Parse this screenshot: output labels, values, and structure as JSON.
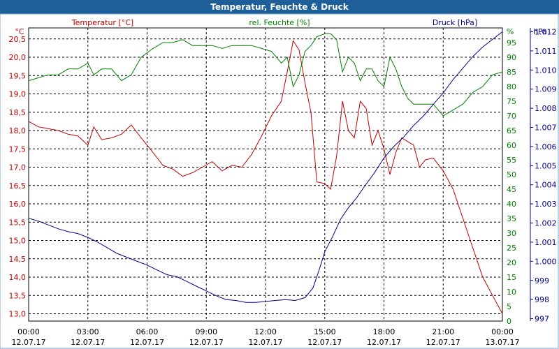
{
  "window": {
    "title": "Temperatur, Feuchte & Druck"
  },
  "colors": {
    "temperature": "#c00000",
    "humidity": "#008000",
    "pressure": "#00008b",
    "titlebar": "#1f5f99"
  },
  "chart_data": {
    "type": "line",
    "title": "Temperatur, Feuchte & Druck",
    "x_labels": [
      {
        "time": "00:00",
        "date": "12.07.17"
      },
      {
        "time": "03:00",
        "date": "12.07.17"
      },
      {
        "time": "06:00",
        "date": "12.07.17"
      },
      {
        "time": "09:00",
        "date": "12.07.17"
      },
      {
        "time": "12:00",
        "date": "12.07.17"
      },
      {
        "time": "15:00",
        "date": "12.07.17"
      },
      {
        "time": "18:00",
        "date": "12.07.17"
      },
      {
        "time": "21:00",
        "date": "12.07.17"
      },
      {
        "time": "00:00",
        "date": "13.07.17"
      }
    ],
    "axes": {
      "temperature": {
        "label": "Temperatur [°C]",
        "unit": "°C",
        "range": [
          12.8,
          20.8
        ],
        "ticks": [
          "13,0",
          "13,5",
          "14,0",
          "14,5",
          "15,0",
          "15,5",
          "16,0",
          "16,5",
          "17,0",
          "17,5",
          "18,0",
          "18,5",
          "19,0",
          "19,5",
          "20,0",
          "20,5"
        ]
      },
      "humidity": {
        "label": "rel. Feuchte [%]",
        "unit": "%",
        "range": [
          0,
          100
        ],
        "ticks": [
          "0",
          "5",
          "10",
          "15",
          "20",
          "25",
          "30",
          "35",
          "40",
          "45",
          "50",
          "55",
          "60",
          "65",
          "70",
          "75",
          "80",
          "85",
          "90",
          "95"
        ]
      },
      "pressure": {
        "label": "Druck [hPa]",
        "unit": "hPa",
        "range": [
          996.875,
          1012.2
        ],
        "ticks": [
          "997",
          "998",
          "999",
          "1.000",
          "1.001",
          "1.002",
          "1.003",
          "1.004",
          "1.005",
          "1.006",
          "1.007",
          "1.008",
          "1.009",
          "1.010",
          "1.011",
          "1.012"
        ]
      }
    },
    "series": [
      {
        "name": "Temperatur [°C]",
        "axis": "temperature",
        "points": [
          [
            0,
            18.25
          ],
          [
            0.5,
            18.1
          ],
          [
            1,
            18.05
          ],
          [
            1.5,
            18.0
          ],
          [
            2,
            17.9
          ],
          [
            2.5,
            17.85
          ],
          [
            3,
            17.6
          ],
          [
            3.3,
            18.1
          ],
          [
            3.7,
            17.75
          ],
          [
            4.2,
            17.8
          ],
          [
            4.7,
            17.9
          ],
          [
            5.2,
            18.15
          ],
          [
            5.7,
            17.8
          ],
          [
            6.3,
            17.4
          ],
          [
            6.8,
            17.05
          ],
          [
            7.3,
            16.95
          ],
          [
            7.8,
            16.75
          ],
          [
            8.3,
            16.85
          ],
          [
            8.8,
            17.0
          ],
          [
            9.3,
            17.15
          ],
          [
            9.8,
            16.9
          ],
          [
            10.3,
            17.05
          ],
          [
            10.8,
            17.0
          ],
          [
            11.3,
            17.35
          ],
          [
            11.8,
            17.85
          ],
          [
            12.3,
            18.4
          ],
          [
            12.8,
            18.8
          ],
          [
            13.1,
            19.6
          ],
          [
            13.4,
            20.45
          ],
          [
            13.7,
            20.2
          ],
          [
            14.0,
            19.3
          ],
          [
            14.3,
            18.5
          ],
          [
            14.6,
            16.6
          ],
          [
            15.0,
            16.55
          ],
          [
            15.3,
            16.4
          ],
          [
            15.6,
            17.3
          ],
          [
            15.9,
            18.8
          ],
          [
            16.2,
            18.0
          ],
          [
            16.5,
            17.8
          ],
          [
            16.8,
            18.8
          ],
          [
            17.1,
            18.6
          ],
          [
            17.4,
            17.6
          ],
          [
            17.7,
            18.0
          ],
          [
            18.0,
            17.5
          ],
          [
            18.3,
            16.8
          ],
          [
            18.6,
            17.4
          ],
          [
            18.9,
            17.8
          ],
          [
            19.2,
            17.7
          ],
          [
            19.5,
            17.6
          ],
          [
            19.8,
            17.0
          ],
          [
            20.1,
            17.2
          ],
          [
            20.5,
            17.25
          ],
          [
            21.0,
            16.9
          ],
          [
            21.5,
            16.4
          ],
          [
            22.0,
            15.6
          ],
          [
            22.5,
            14.8
          ],
          [
            23.0,
            14.0
          ],
          [
            23.5,
            13.5
          ],
          [
            24.0,
            13.0
          ]
        ]
      },
      {
        "name": "rel. Feuchte [%]",
        "axis": "humidity",
        "points": [
          [
            0,
            82
          ],
          [
            0.5,
            83
          ],
          [
            1,
            84
          ],
          [
            1.5,
            84
          ],
          [
            2,
            86
          ],
          [
            2.5,
            86
          ],
          [
            3,
            88
          ],
          [
            3.3,
            84
          ],
          [
            3.7,
            86
          ],
          [
            4.2,
            86
          ],
          [
            4.7,
            82
          ],
          [
            5.2,
            84
          ],
          [
            5.7,
            90
          ],
          [
            6.3,
            93
          ],
          [
            6.8,
            95
          ],
          [
            7.3,
            95
          ],
          [
            7.8,
            96
          ],
          [
            8.3,
            94
          ],
          [
            8.8,
            94
          ],
          [
            9.3,
            94
          ],
          [
            9.8,
            93
          ],
          [
            10.3,
            94
          ],
          [
            10.8,
            94
          ],
          [
            11.3,
            94
          ],
          [
            11.8,
            93
          ],
          [
            12.3,
            92
          ],
          [
            12.8,
            88
          ],
          [
            13.1,
            90
          ],
          [
            13.4,
            80
          ],
          [
            13.7,
            84
          ],
          [
            14.0,
            92
          ],
          [
            14.3,
            94
          ],
          [
            14.6,
            97
          ],
          [
            15.0,
            98
          ],
          [
            15.3,
            98
          ],
          [
            15.6,
            96
          ],
          [
            15.9,
            85
          ],
          [
            16.2,
            90
          ],
          [
            16.5,
            88
          ],
          [
            16.8,
            82
          ],
          [
            17.1,
            86
          ],
          [
            17.4,
            86
          ],
          [
            17.7,
            82
          ],
          [
            18.0,
            80
          ],
          [
            18.3,
            90
          ],
          [
            18.6,
            86
          ],
          [
            18.9,
            80
          ],
          [
            19.2,
            76
          ],
          [
            19.5,
            74
          ],
          [
            19.8,
            74
          ],
          [
            20.1,
            74
          ],
          [
            20.5,
            74
          ],
          [
            21.0,
            70
          ],
          [
            21.5,
            72
          ],
          [
            22.0,
            74
          ],
          [
            22.5,
            78
          ],
          [
            23.0,
            80
          ],
          [
            23.5,
            84
          ],
          [
            24.0,
            85
          ]
        ]
      },
      {
        "name": "Druck [hPa]",
        "axis": "pressure",
        "points": [
          [
            0,
            1002.25
          ],
          [
            0.5,
            1002.1
          ],
          [
            1,
            1001.9
          ],
          [
            1.5,
            1001.7
          ],
          [
            2,
            1001.55
          ],
          [
            2.5,
            1001.45
          ],
          [
            3,
            1001.25
          ],
          [
            3.5,
            1001.0
          ],
          [
            4,
            1000.7
          ],
          [
            4.5,
            1000.4
          ],
          [
            5.0,
            1000.2
          ],
          [
            5.5,
            1000.0
          ],
          [
            6.0,
            999.8
          ],
          [
            6.5,
            999.55
          ],
          [
            7.0,
            999.3
          ],
          [
            7.5,
            999.2
          ],
          [
            8.0,
            998.95
          ],
          [
            8.5,
            998.7
          ],
          [
            9.0,
            998.45
          ],
          [
            9.5,
            998.2
          ],
          [
            10.0,
            998.0
          ],
          [
            10.5,
            997.95
          ],
          [
            11.0,
            997.85
          ],
          [
            11.5,
            997.85
          ],
          [
            12.0,
            997.9
          ],
          [
            12.5,
            997.95
          ],
          [
            13.0,
            998.0
          ],
          [
            13.5,
            997.95
          ],
          [
            14.0,
            998.1
          ],
          [
            14.4,
            998.6
          ],
          [
            14.7,
            999.5
          ],
          [
            15.0,
            1000.5
          ],
          [
            15.4,
            1001.3
          ],
          [
            15.8,
            1002.2
          ],
          [
            16.2,
            1002.8
          ],
          [
            16.6,
            1003.3
          ],
          [
            17.0,
            1003.9
          ],
          [
            17.5,
            1004.6
          ],
          [
            18.0,
            1005.4
          ],
          [
            18.5,
            1006.0
          ],
          [
            19.0,
            1006.5
          ],
          [
            19.5,
            1007.1
          ],
          [
            20.0,
            1007.6
          ],
          [
            20.5,
            1008.2
          ],
          [
            21.0,
            1008.8
          ],
          [
            21.5,
            1009.5
          ],
          [
            22.0,
            1010.1
          ],
          [
            22.5,
            1010.7
          ],
          [
            23.0,
            1011.2
          ],
          [
            23.5,
            1011.6
          ],
          [
            24.0,
            1012.0
          ]
        ]
      }
    ]
  }
}
